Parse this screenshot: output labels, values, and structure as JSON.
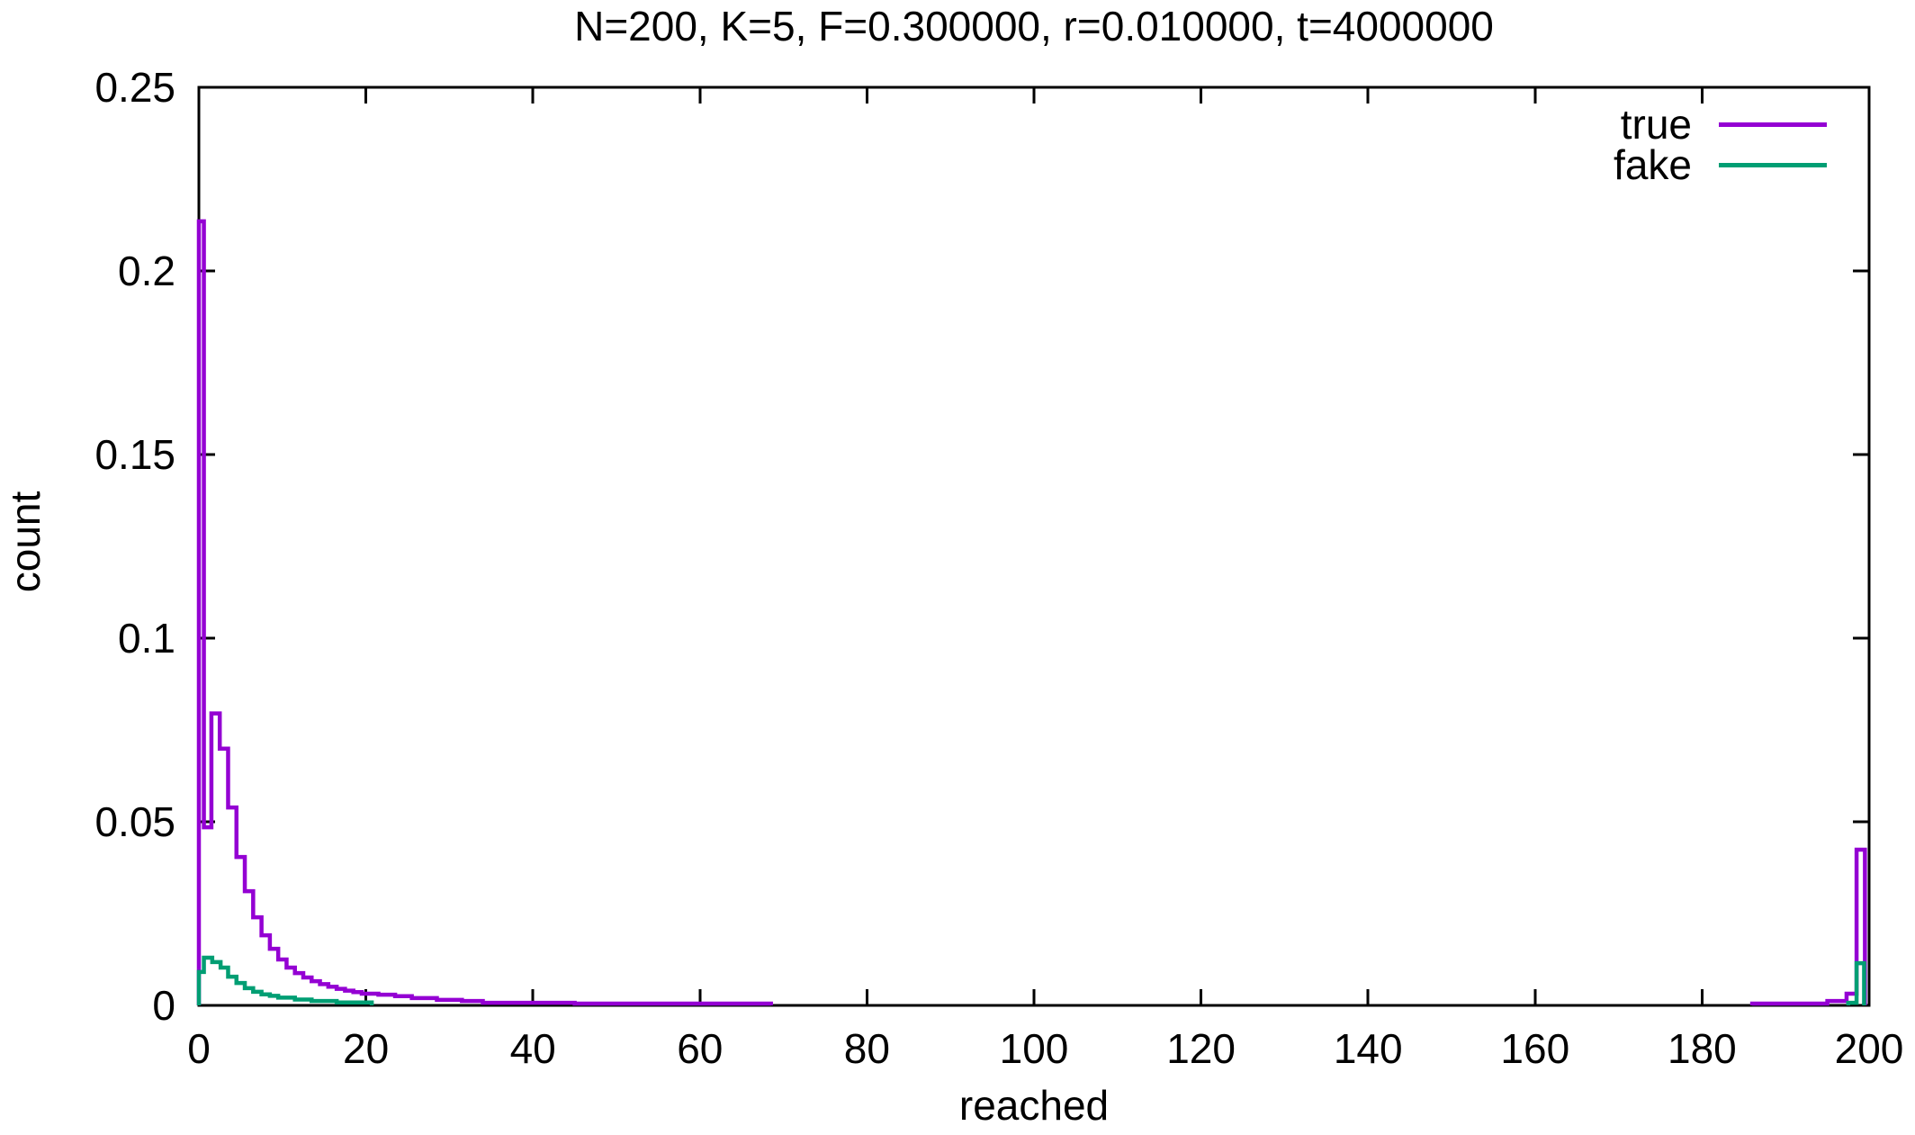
{
  "title": "N=200, K=5, F=0.300000, r=0.010000, t=4000000",
  "chart_data": {
    "type": "line",
    "style": "gnuplot-step-histogram",
    "title": "N=200, K=5, F=0.300000, r=0.010000, t=4000000",
    "xlabel": "reached",
    "ylabel": "count",
    "xlim": [
      0,
      200
    ],
    "ylim": [
      0,
      0.25
    ],
    "grid": false,
    "legend_position": "top-right-inside",
    "x_ticks": [
      0,
      20,
      40,
      60,
      80,
      100,
      120,
      140,
      160,
      180,
      200
    ],
    "x_tick_labels": [
      "0",
      "20",
      "40",
      "60",
      "80",
      "100",
      "120",
      "140",
      "160",
      "180",
      "200"
    ],
    "y_ticks": [
      0,
      0.05,
      0.1,
      0.15,
      0.2,
      0.25
    ],
    "y_tick_labels": [
      "0",
      "0.05",
      "0.1",
      "0.15",
      "0.2",
      "0.25"
    ],
    "axis_color": "#000000",
    "series": [
      {
        "name": "true",
        "color": "#9400d3",
        "segments": [
          [
            0,
            0.6,
            0.2135
          ],
          [
            0.6,
            1.5,
            0.0485
          ],
          [
            1.5,
            2.5,
            0.0795
          ],
          [
            2.5,
            3.5,
            0.0699
          ],
          [
            3.5,
            4.5,
            0.0539
          ],
          [
            4.5,
            5.5,
            0.0404
          ],
          [
            5.5,
            6.5,
            0.0311
          ],
          [
            6.5,
            7.5,
            0.024
          ],
          [
            7.5,
            8.5,
            0.0191
          ],
          [
            8.5,
            9.5,
            0.0154
          ],
          [
            9.5,
            10.5,
            0.0125
          ],
          [
            10.5,
            11.5,
            0.0103
          ],
          [
            11.5,
            12.5,
            0.0088
          ],
          [
            12.5,
            13.5,
            0.0076
          ],
          [
            13.5,
            14.5,
            0.0066
          ],
          [
            14.5,
            15.5,
            0.0058
          ],
          [
            15.5,
            16.5,
            0.0051
          ],
          [
            16.5,
            17.5,
            0.0045
          ],
          [
            17.5,
            18.5,
            0.004
          ],
          [
            18.5,
            19.5,
            0.0036
          ],
          [
            19.5,
            21.5,
            0.0032
          ],
          [
            21.5,
            23.5,
            0.0029
          ],
          [
            23.5,
            25.5,
            0.0025
          ],
          [
            25.5,
            28.5,
            0.002
          ],
          [
            28.5,
            31.5,
            0.0015
          ],
          [
            31.5,
            34,
            0.0012
          ],
          [
            34,
            45,
            0.0007
          ],
          [
            45,
            68.5,
            0.0005
          ],
          [
            186,
            195,
            0.0005
          ],
          [
            195,
            197.3,
            0.0012
          ],
          [
            197.3,
            198.5,
            0.0032
          ],
          [
            198.5,
            199.5,
            0.0424
          ]
        ]
      },
      {
        "name": "fake",
        "color": "#009e73",
        "segments": [
          [
            0,
            0.6,
            0.0091
          ],
          [
            0.6,
            1.6,
            0.013
          ],
          [
            1.6,
            2.6,
            0.0118
          ],
          [
            2.6,
            3.5,
            0.0103
          ],
          [
            3.5,
            4.5,
            0.0078
          ],
          [
            4.5,
            5.5,
            0.0061
          ],
          [
            5.5,
            6.5,
            0.0047
          ],
          [
            6.5,
            7.5,
            0.0037
          ],
          [
            7.5,
            8.5,
            0.003
          ],
          [
            8.5,
            9.5,
            0.0026
          ],
          [
            9.5,
            11.5,
            0.0021
          ],
          [
            11.5,
            13.5,
            0.0016
          ],
          [
            13.5,
            16.5,
            0.0012
          ],
          [
            16.5,
            20.7,
            0.0008
          ],
          [
            197.5,
            198.5,
            0.0007
          ],
          [
            198.5,
            199.4,
            0.0115
          ]
        ]
      }
    ]
  }
}
